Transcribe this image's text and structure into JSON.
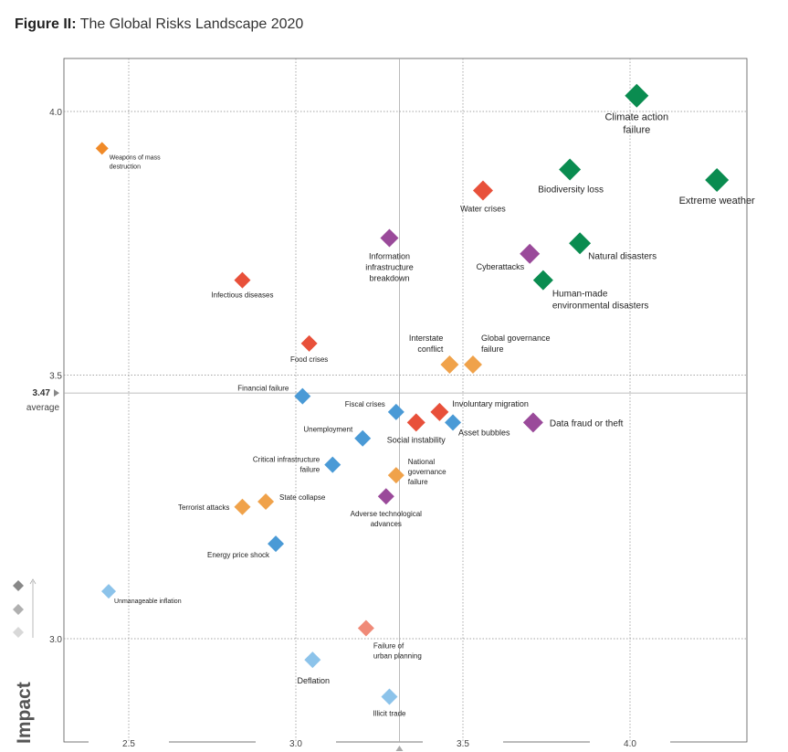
{
  "figure": {
    "label": "Figure II:",
    "title": "The Global Risks Landscape 2020"
  },
  "chart_data": {
    "type": "scatter",
    "title": "The Global Risks Landscape 2020",
    "xlabel": "",
    "ylabel": "Impact",
    "xlim": [
      2.3,
      4.35
    ],
    "ylim": [
      2.8,
      4.1
    ],
    "x_ticks": [
      {
        "value": 2.5,
        "label": "2.5"
      },
      {
        "value": 3.0,
        "label": "3.0"
      },
      {
        "value": 3.5,
        "label": "3.5"
      },
      {
        "value": 4.0,
        "label": "4.0"
      }
    ],
    "y_ticks": [
      {
        "value": 3.0,
        "label": "3.0"
      },
      {
        "value": 3.5,
        "label": "3.5"
      },
      {
        "value": 4.0,
        "label": "4.0"
      }
    ],
    "grid": true,
    "average": {
      "x": 3.31,
      "y": 3.466,
      "y_label": "3.47",
      "y_sublabel": "average"
    },
    "colors": {
      "economic": "#4a9ad6",
      "economic_light": "#8cc3ea",
      "environmental": "#0a8c50",
      "geopolitical": "#f0a24a",
      "societal": "#e8503a",
      "societal_light": "#f08a78",
      "technological": "#9a4a9a",
      "wmd": "#f08a28"
    },
    "points": [
      {
        "name": "Climate action failure",
        "x": 4.02,
        "y": 4.03,
        "category": "environmental",
        "size": 13,
        "lines": [
          "Climate action",
          "failure"
        ],
        "font": 11,
        "anchor": "middle",
        "dx": 0,
        "dy": 27
      },
      {
        "name": "Extreme weather",
        "x": 4.26,
        "y": 3.87,
        "category": "environmental",
        "size": 13,
        "lines": [
          "Extreme weather"
        ],
        "font": 11,
        "anchor": "middle",
        "dx": 0,
        "dy": 26
      },
      {
        "name": "Biodiversity loss",
        "x": 3.82,
        "y": 3.89,
        "category": "environmental",
        "size": 12,
        "lines": [
          "Biodiversity loss"
        ],
        "font": 10,
        "anchor": "middle",
        "dx": 1,
        "dy": 25
      },
      {
        "name": "Water crises",
        "x": 3.56,
        "y": 3.85,
        "category": "societal",
        "size": 11,
        "lines": [
          "Water crises"
        ],
        "font": 9,
        "anchor": "middle",
        "dx": 0,
        "dy": 23
      },
      {
        "name": "Natural disasters",
        "x": 3.85,
        "y": 3.75,
        "category": "environmental",
        "size": 12,
        "lines": [
          "Natural disasters"
        ],
        "font": 10,
        "anchor": "start",
        "dx": 9,
        "dy": 17
      },
      {
        "name": "Cyberattacks",
        "x": 3.7,
        "y": 3.73,
        "category": "technological",
        "size": 11,
        "lines": [
          "Cyberattacks"
        ],
        "font": 9,
        "anchor": "end",
        "dx": -6,
        "dy": 17
      },
      {
        "name": "Human-made environmental disasters",
        "x": 3.74,
        "y": 3.68,
        "category": "environmental",
        "size": 11,
        "lines": [
          "Human-made",
          "environmental disasters"
        ],
        "font": 10,
        "anchor": "start",
        "dx": 10,
        "dy": 18
      },
      {
        "name": "Information infrastructure breakdown",
        "x": 3.28,
        "y": 3.76,
        "category": "technological",
        "size": 10,
        "lines": [
          "Information",
          "infrastructure",
          "breakdown"
        ],
        "font": 9,
        "anchor": "middle",
        "dx": 0,
        "dy": 23
      },
      {
        "name": "Weapons of mass destruction",
        "x": 2.42,
        "y": 3.93,
        "category": "wmd",
        "size": 7,
        "lines": [
          "Weapons of mass",
          "destruction"
        ],
        "font": 7,
        "anchor": "start",
        "dx": 8,
        "dy": 12
      },
      {
        "name": "Infectious diseases",
        "x": 2.84,
        "y": 3.68,
        "category": "societal",
        "size": 9,
        "lines": [
          "Infectious diseases"
        ],
        "font": 8,
        "anchor": "middle",
        "dx": 0,
        "dy": 19
      },
      {
        "name": "Food crises",
        "x": 3.04,
        "y": 3.56,
        "category": "societal",
        "size": 9,
        "lines": [
          "Food crises"
        ],
        "font": 8,
        "anchor": "middle",
        "dx": 0,
        "dy": 20
      },
      {
        "name": "Interstate conflict",
        "x": 3.46,
        "y": 3.52,
        "category": "geopolitical",
        "size": 10,
        "lines": [
          "Interstate",
          "conflict"
        ],
        "font": 9,
        "anchor": "end",
        "dx": -7,
        "dy": -26
      },
      {
        "name": "Global governance failure",
        "x": 3.53,
        "y": 3.52,
        "category": "geopolitical",
        "size": 10,
        "lines": [
          "Global governance",
          "failure"
        ],
        "font": 9,
        "anchor": "start",
        "dx": 9,
        "dy": -26
      },
      {
        "name": "Financial failure",
        "x": 3.02,
        "y": 3.46,
        "category": "economic",
        "size": 9,
        "lines": [
          "Financial failure"
        ],
        "font": 8,
        "anchor": "end",
        "dx": -15,
        "dy": -6
      },
      {
        "name": "Fiscal crises",
        "x": 3.3,
        "y": 3.43,
        "category": "economic",
        "size": 9,
        "lines": [
          "Fiscal crises"
        ],
        "font": 8,
        "anchor": "end",
        "dx": -12,
        "dy": -6
      },
      {
        "name": "Involuntary migration",
        "x": 3.43,
        "y": 3.43,
        "category": "societal",
        "size": 10,
        "lines": [
          "Involuntary migration"
        ],
        "font": 9,
        "anchor": "start",
        "dx": 14,
        "dy": -6
      },
      {
        "name": "Social instability",
        "x": 3.36,
        "y": 3.41,
        "category": "societal",
        "size": 10,
        "lines": [
          "Social instability"
        ],
        "font": 9,
        "anchor": "middle",
        "dx": 0,
        "dy": 22
      },
      {
        "name": "Asset bubbles",
        "x": 3.47,
        "y": 3.41,
        "category": "economic",
        "size": 9,
        "lines": [
          "Asset bubbles"
        ],
        "font": 9,
        "anchor": "start",
        "dx": 6,
        "dy": 14
      },
      {
        "name": "Data fraud or theft",
        "x": 3.71,
        "y": 3.41,
        "category": "technological",
        "size": 11,
        "lines": [
          "Data fraud or theft"
        ],
        "font": 10,
        "anchor": "start",
        "dx": 18,
        "dy": 4
      },
      {
        "name": "Unemployment",
        "x": 3.2,
        "y": 3.38,
        "category": "economic",
        "size": 9,
        "lines": [
          "Unemployment"
        ],
        "font": 8,
        "anchor": "end",
        "dx": -11,
        "dy": -7
      },
      {
        "name": "Critical infrastructure failure",
        "x": 3.11,
        "y": 3.33,
        "category": "economic",
        "size": 9,
        "lines": [
          "Critical infrastructure",
          "failure"
        ],
        "font": 8,
        "anchor": "end",
        "dx": -14,
        "dy": -3
      },
      {
        "name": "National governance failure",
        "x": 3.3,
        "y": 3.31,
        "category": "geopolitical",
        "size": 9,
        "lines": [
          "National",
          "governance",
          "failure"
        ],
        "font": 8,
        "anchor": "start",
        "dx": 13,
        "dy": -12
      },
      {
        "name": "Adverse technological advances",
        "x": 3.27,
        "y": 3.27,
        "category": "technological",
        "size": 9,
        "lines": [
          "Adverse technological",
          "advances"
        ],
        "font": 8,
        "anchor": "middle",
        "dx": 0,
        "dy": 22
      },
      {
        "name": "State collapse",
        "x": 2.91,
        "y": 3.26,
        "category": "geopolitical",
        "size": 9,
        "lines": [
          "State collapse"
        ],
        "font": 8,
        "anchor": "start",
        "dx": 15,
        "dy": -2
      },
      {
        "name": "Terrorist attacks",
        "x": 2.84,
        "y": 3.25,
        "category": "geopolitical",
        "size": 9,
        "lines": [
          "Terrorist attacks"
        ],
        "font": 8,
        "anchor": "end",
        "dx": -14,
        "dy": 3
      },
      {
        "name": "Energy price shock",
        "x": 2.94,
        "y": 3.18,
        "category": "economic",
        "size": 9,
        "lines": [
          "Energy price shock"
        ],
        "font": 8,
        "anchor": "end",
        "dx": -7,
        "dy": 15
      },
      {
        "name": "Unmanageable inflation",
        "x": 2.44,
        "y": 3.09,
        "category": "economic_light",
        "size": 8,
        "lines": [
          "Unmanageable inflation"
        ],
        "font": 7,
        "anchor": "start",
        "dx": 6,
        "dy": 13
      },
      {
        "name": "Failure of urban planning",
        "x": 3.21,
        "y": 3.02,
        "category": "societal_light",
        "size": 9,
        "lines": [
          "Failure of",
          "urban planning"
        ],
        "font": 8,
        "anchor": "start",
        "dx": 8,
        "dy": 22
      },
      {
        "name": "Deflation",
        "x": 3.05,
        "y": 2.96,
        "category": "economic_light",
        "size": 9,
        "lines": [
          "Deflation"
        ],
        "font": 9,
        "anchor": "middle",
        "dx": 1,
        "dy": 26
      },
      {
        "name": "Illicit trade",
        "x": 3.28,
        "y": 2.89,
        "category": "economic_light",
        "size": 9,
        "lines": [
          "Illicit trade"
        ],
        "font": 8,
        "anchor": "middle",
        "dx": 0,
        "dy": 21
      }
    ]
  }
}
